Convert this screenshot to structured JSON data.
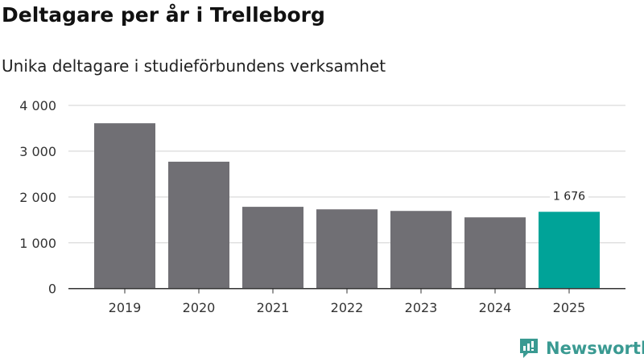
{
  "chart_data": {
    "type": "bar",
    "title": "Deltagare per år i Trelleborg",
    "subtitle": "Unika deltagare i studieförbundens verksamhet",
    "categories": [
      "2019",
      "2020",
      "2021",
      "2022",
      "2023",
      "2024",
      "2025"
    ],
    "values": [
      3610,
      2770,
      1785,
      1730,
      1695,
      1555,
      1676
    ],
    "highlight_index": 6,
    "data_labels": [
      {
        "index": 6,
        "text": "1 676"
      }
    ],
    "yticks": [
      0,
      1000,
      2000,
      3000,
      4000
    ],
    "ytick_labels": [
      "0",
      "1 000",
      "2 000",
      "3 000",
      "4 000"
    ],
    "ylim": [
      0,
      4000
    ],
    "xlabel": "",
    "ylabel": "",
    "grid": true,
    "colors": {
      "bar": "#706f74",
      "highlight": "#00a398",
      "grid": "#e0e0e0"
    }
  },
  "brand": {
    "name": "Newsworthy",
    "color": "#3a9a92"
  }
}
